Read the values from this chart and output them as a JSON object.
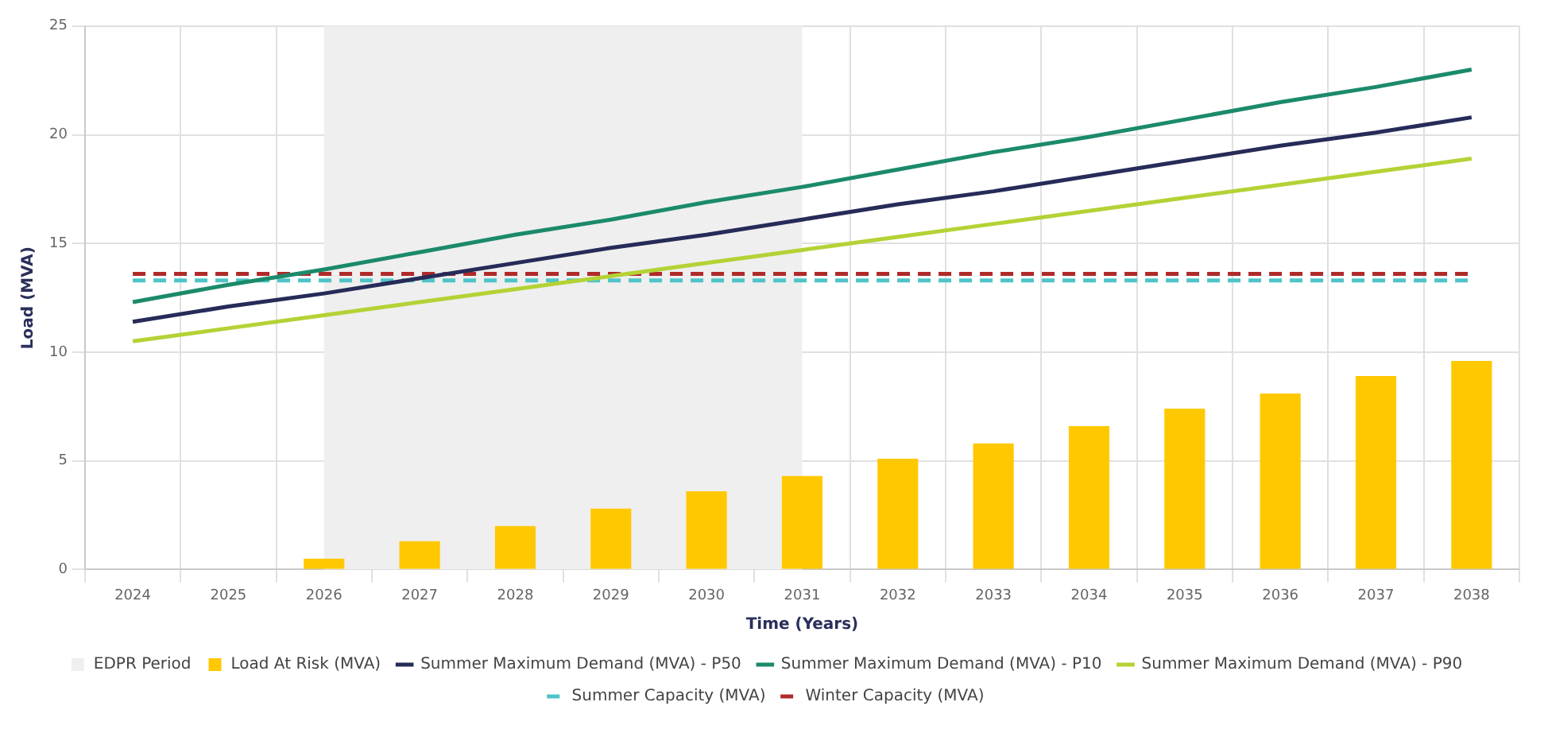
{
  "chart_data": {
    "type": "bar",
    "xlabel": "Time (Years)",
    "ylabel": "Load (MVA)",
    "categories": [
      "2024",
      "2025",
      "2026",
      "2027",
      "2028",
      "2029",
      "2030",
      "2031",
      "2032",
      "2033",
      "2034",
      "2035",
      "2036",
      "2037",
      "2038"
    ],
    "series": [
      {
        "name": "Load At Risk (MVA)",
        "color": "#ffc800",
        "values": [
          0,
          0,
          0.5,
          1.3,
          2.0,
          2.8,
          3.6,
          4.3,
          5.1,
          5.8,
          6.6,
          7.4,
          8.1,
          8.9,
          9.6
        ]
      },
      {
        "name": "Summer Maximum Demand (MVA) - P50",
        "type": "line",
        "line_style": "solid",
        "color": "#262b58",
        "values": [
          11.4,
          12.1,
          12.7,
          13.4,
          14.1,
          14.8,
          15.4,
          16.1,
          16.8,
          17.4,
          18.1,
          18.8,
          19.5,
          20.1,
          20.8
        ]
      },
      {
        "name": "Summer Maximum Demand (MVA) - P10",
        "type": "line",
        "line_style": "solid",
        "color": "#1b8a6b",
        "values": [
          12.3,
          13.1,
          13.8,
          14.6,
          15.4,
          16.1,
          16.9,
          17.6,
          18.4,
          19.2,
          19.9,
          20.7,
          21.5,
          22.2,
          23.0
        ]
      },
      {
        "name": "Summer Maximum Demand (MVA) - P90",
        "type": "line",
        "line_style": "solid",
        "color": "#b4d235",
        "values": [
          10.5,
          11.1,
          11.7,
          12.3,
          12.9,
          13.5,
          14.1,
          14.7,
          15.3,
          15.9,
          16.5,
          17.1,
          17.7,
          18.3,
          18.9
        ]
      },
      {
        "name": "Summer Capacity (MVA)",
        "type": "line",
        "line_style": "dashed",
        "color": "#4fc4c8",
        "values": [
          13.3,
          13.3,
          13.3,
          13.3,
          13.3,
          13.3,
          13.3,
          13.3,
          13.3,
          13.3,
          13.3,
          13.3,
          13.3,
          13.3,
          13.3
        ]
      },
      {
        "name": "Winter Capacity (MVA)",
        "type": "line",
        "line_style": "dashed",
        "color": "#b02a2a",
        "values": [
          13.6,
          13.6,
          13.6,
          13.6,
          13.6,
          13.6,
          13.6,
          13.6,
          13.6,
          13.6,
          13.6,
          13.6,
          13.6,
          13.6,
          13.6
        ]
      }
    ],
    "bands": [
      {
        "axis": "x",
        "from": "2026",
        "to": "2031",
        "label": "EDPR Period",
        "color": "#efefef"
      }
    ],
    "ylim": [
      0,
      25
    ],
    "yticks": [
      0,
      5,
      10,
      15,
      20,
      25
    ],
    "grid": true,
    "legend": "bottom",
    "marker": "none"
  }
}
